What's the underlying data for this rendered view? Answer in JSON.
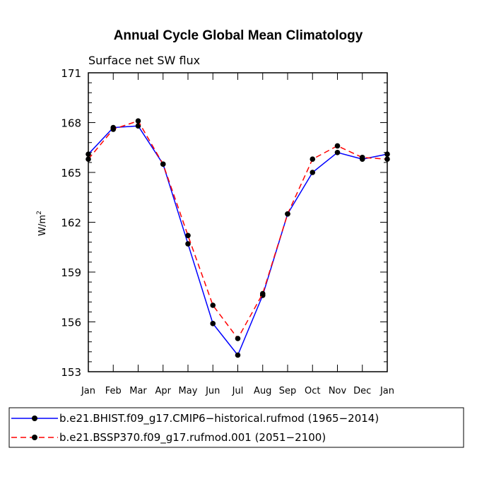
{
  "chart_data": {
    "type": "line",
    "title": "Annual Cycle Global Mean Climatology",
    "subtitle": "Surface net SW flux",
    "xlabel": "",
    "ylabel": "W/m",
    "ylabel_superscript": "2",
    "ylim": [
      153,
      171
    ],
    "yticks": [
      "153",
      "156",
      "159",
      "162",
      "165",
      "168",
      "171"
    ],
    "categories": [
      "Jan",
      "Feb",
      "Mar",
      "Apr",
      "May",
      "Jun",
      "Jul",
      "Aug",
      "Sep",
      "Oct",
      "Nov",
      "Dec",
      "Jan"
    ],
    "series": [
      {
        "name": "b.e21.BHIST.f09_g17.CMIP6−historical.rufmod (1965−2014)",
        "color": "#0000ff",
        "dash": "solid",
        "values": [
          166.1,
          167.7,
          167.8,
          165.5,
          160.7,
          155.9,
          154.0,
          157.6,
          162.5,
          165.0,
          166.2,
          165.8,
          166.1
        ]
      },
      {
        "name": "b.e21.BSSP370.f09_g17.rufmod.001 (2051−2100)",
        "color": "#ff0000",
        "dash": "dashed",
        "values": [
          165.8,
          167.6,
          168.1,
          165.5,
          161.2,
          157.0,
          155.0,
          157.7,
          162.5,
          165.8,
          166.6,
          165.9,
          165.8
        ]
      }
    ],
    "legend_position": "bottom"
  }
}
